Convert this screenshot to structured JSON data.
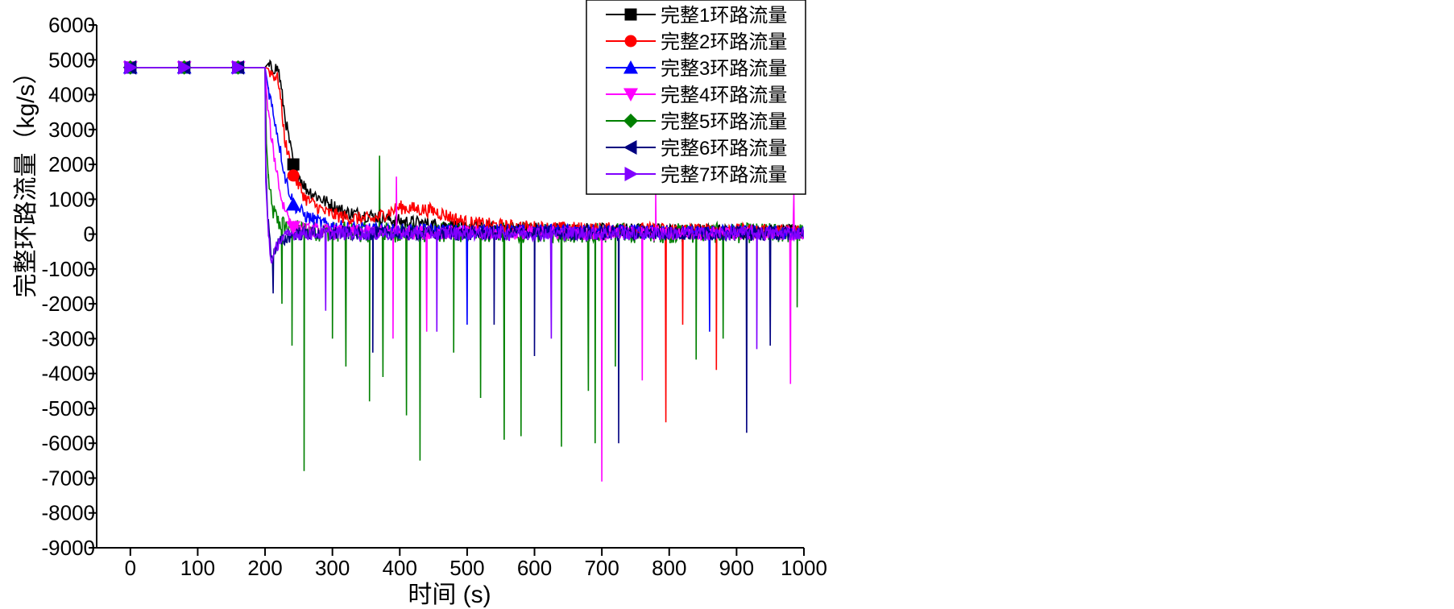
{
  "chart_data": {
    "type": "line",
    "title": "",
    "xlabel": "时间 (s)",
    "ylabel": "完整环路流量（kg/s）",
    "xlim": [
      -50,
      1000
    ],
    "ylim": [
      -9000,
      6000
    ],
    "xticks": [
      0,
      100,
      200,
      300,
      400,
      500,
      600,
      700,
      800,
      900,
      1000
    ],
    "yticks": [
      6000,
      5000,
      4000,
      3000,
      2000,
      1000,
      0,
      -1000,
      -2000,
      -3000,
      -4000,
      -5000,
      -6000,
      -7000,
      -8000,
      -9000
    ],
    "grid": false,
    "legend_position": "top-right",
    "series": [
      {
        "name": "完整1环路流量",
        "color": "#000000",
        "marker": "square",
        "x": [
          0,
          80,
          160,
          200,
          215,
          220,
          230,
          242,
          260,
          290,
          320,
          360,
          400,
          450,
          500,
          560,
          620,
          700,
          800,
          900,
          1000
        ],
        "y": [
          4780,
          4780,
          4780,
          4780,
          4750,
          4700,
          3300,
          2000,
          1300,
          900,
          600,
          500,
          350,
          250,
          180,
          150,
          120,
          100,
          80,
          60,
          50
        ],
        "marker_x": [
          0,
          80,
          160,
          242
        ]
      },
      {
        "name": "完整2环路流量",
        "color": "#ff0000",
        "marker": "circle",
        "x": [
          0,
          80,
          160,
          200,
          210,
          220,
          230,
          242,
          260,
          290,
          320,
          360,
          400,
          450,
          500,
          560,
          620,
          700,
          800,
          900,
          1000
        ],
        "y": [
          4780,
          4780,
          4780,
          4780,
          4600,
          4400,
          2600,
          1680,
          1000,
          600,
          450,
          400,
          750,
          650,
          300,
          200,
          150,
          120,
          100,
          80,
          60
        ],
        "marker_x": [
          0,
          80,
          160,
          242
        ]
      },
      {
        "name": "完整3环路流量",
        "color": "#0000ff",
        "marker": "triangle-up",
        "x": [
          0,
          80,
          160,
          200,
          205,
          215,
          230,
          242,
          260,
          290,
          320,
          360,
          400,
          500,
          600,
          700,
          800,
          900,
          1000
        ],
        "y": [
          4780,
          4780,
          4780,
          4780,
          4150,
          3200,
          1600,
          850,
          500,
          250,
          150,
          100,
          80,
          70,
          60,
          50,
          40,
          30,
          20
        ],
        "marker_x": [
          0,
          80,
          160,
          242
        ]
      },
      {
        "name": "完整4环路流量",
        "color": "#ff00ff",
        "marker": "triangle-down",
        "x": [
          0,
          80,
          160,
          200,
          204,
          212,
          225,
          242,
          260,
          300,
          400,
          500,
          600,
          700,
          800,
          900,
          1000
        ],
        "y": [
          4780,
          4780,
          4780,
          4780,
          3550,
          2400,
          900,
          200,
          100,
          60,
          40,
          30,
          20,
          10,
          0,
          0,
          0
        ],
        "marker_x": [
          0,
          80,
          160,
          242
        ]
      },
      {
        "name": "完整5环路流量",
        "color": "#008000",
        "marker": "diamond",
        "x": [
          0,
          80,
          160,
          200,
          202,
          205,
          210,
          220,
          242,
          280,
          350,
          400,
          500,
          600,
          700,
          800,
          900,
          1000
        ],
        "y": [
          4780,
          4780,
          4780,
          4780,
          2600,
          1600,
          700,
          300,
          100,
          50,
          30,
          20,
          20,
          10,
          10,
          0,
          0,
          0
        ],
        "marker_x": [
          0,
          80,
          160
        ]
      },
      {
        "name": "完整6环路流量",
        "color": "#000080",
        "marker": "triangle-left",
        "x": [
          0,
          80,
          160,
          200,
          201,
          204,
          210,
          220,
          242,
          300,
          400,
          500,
          600,
          700,
          800,
          900,
          1000
        ],
        "y": [
          4780,
          4780,
          4780,
          4780,
          2000,
          400,
          -700,
          -300,
          0,
          0,
          0,
          0,
          0,
          0,
          0,
          0,
          0
        ],
        "marker_x": [
          0,
          80,
          160
        ]
      },
      {
        "name": "完整7环路流量",
        "color": "#8000ff",
        "marker": "triangle-right",
        "x": [
          0,
          80,
          160,
          200,
          201,
          205,
          210,
          220,
          242,
          300,
          400,
          500,
          600,
          700,
          800,
          900,
          1000
        ],
        "y": [
          4780,
          4780,
          4780,
          4780,
          1500,
          0,
          -900,
          -200,
          0,
          0,
          0,
          0,
          0,
          0,
          0,
          0,
          0
        ],
        "marker_x": [
          0,
          80,
          160
        ]
      }
    ],
    "noise": {
      "x_range": [
        205,
        1000
      ],
      "band": [
        -300,
        600
      ],
      "spikes": [
        {
          "series": 5,
          "x": 225,
          "y": -2000
        },
        {
          "series": 5,
          "x": 240,
          "y": -3200
        },
        {
          "series": 5,
          "x": 258,
          "y": -6800
        },
        {
          "series": 5,
          "x": 300,
          "y": -3000
        },
        {
          "series": 5,
          "x": 320,
          "y": -3800
        },
        {
          "series": 5,
          "x": 355,
          "y": -4800
        },
        {
          "series": 5,
          "x": 375,
          "y": -4100
        },
        {
          "series": 5,
          "x": 370,
          "y": 2250
        },
        {
          "series": 5,
          "x": 410,
          "y": -5200
        },
        {
          "series": 5,
          "x": 430,
          "y": -6500
        },
        {
          "series": 5,
          "x": 480,
          "y": -3400
        },
        {
          "series": 5,
          "x": 520,
          "y": -4700
        },
        {
          "series": 5,
          "x": 555,
          "y": -5900
        },
        {
          "series": 5,
          "x": 580,
          "y": -5800
        },
        {
          "series": 5,
          "x": 640,
          "y": -6100
        },
        {
          "series": 5,
          "x": 680,
          "y": -4500
        },
        {
          "series": 5,
          "x": 690,
          "y": -6000
        },
        {
          "series": 5,
          "x": 720,
          "y": -3800
        },
        {
          "series": 5,
          "x": 840,
          "y": -3600
        },
        {
          "series": 5,
          "x": 880,
          "y": -3000
        },
        {
          "series": 5,
          "x": 990,
          "y": -2100
        },
        {
          "series": 4,
          "x": 395,
          "y": 1650
        },
        {
          "series": 4,
          "x": 390,
          "y": -3000
        },
        {
          "series": 4,
          "x": 440,
          "y": -2800
        },
        {
          "series": 4,
          "x": 700,
          "y": -7100
        },
        {
          "series": 4,
          "x": 760,
          "y": -4200
        },
        {
          "series": 4,
          "x": 980,
          "y": -4300
        },
        {
          "series": 4,
          "x": 780,
          "y": 1200
        },
        {
          "series": 4,
          "x": 985,
          "y": 1150
        },
        {
          "series": 2,
          "x": 795,
          "y": -5400
        },
        {
          "series": 2,
          "x": 870,
          "y": -3900
        },
        {
          "series": 2,
          "x": 820,
          "y": -2600
        },
        {
          "series": 6,
          "x": 212,
          "y": -1700
        },
        {
          "series": 6,
          "x": 360,
          "y": -3400
        },
        {
          "series": 6,
          "x": 600,
          "y": -3500
        },
        {
          "series": 6,
          "x": 725,
          "y": -6000
        },
        {
          "series": 6,
          "x": 915,
          "y": -5700
        },
        {
          "series": 6,
          "x": 950,
          "y": -3200
        },
        {
          "series": 6,
          "x": 540,
          "y": -2600
        },
        {
          "series": 7,
          "x": 290,
          "y": -2200
        },
        {
          "series": 7,
          "x": 455,
          "y": -2800
        },
        {
          "series": 7,
          "x": 625,
          "y": -3000
        },
        {
          "series": 7,
          "x": 930,
          "y": -3300
        },
        {
          "series": 3,
          "x": 500,
          "y": -2600
        },
        {
          "series": 3,
          "x": 860,
          "y": -2800
        }
      ]
    }
  }
}
